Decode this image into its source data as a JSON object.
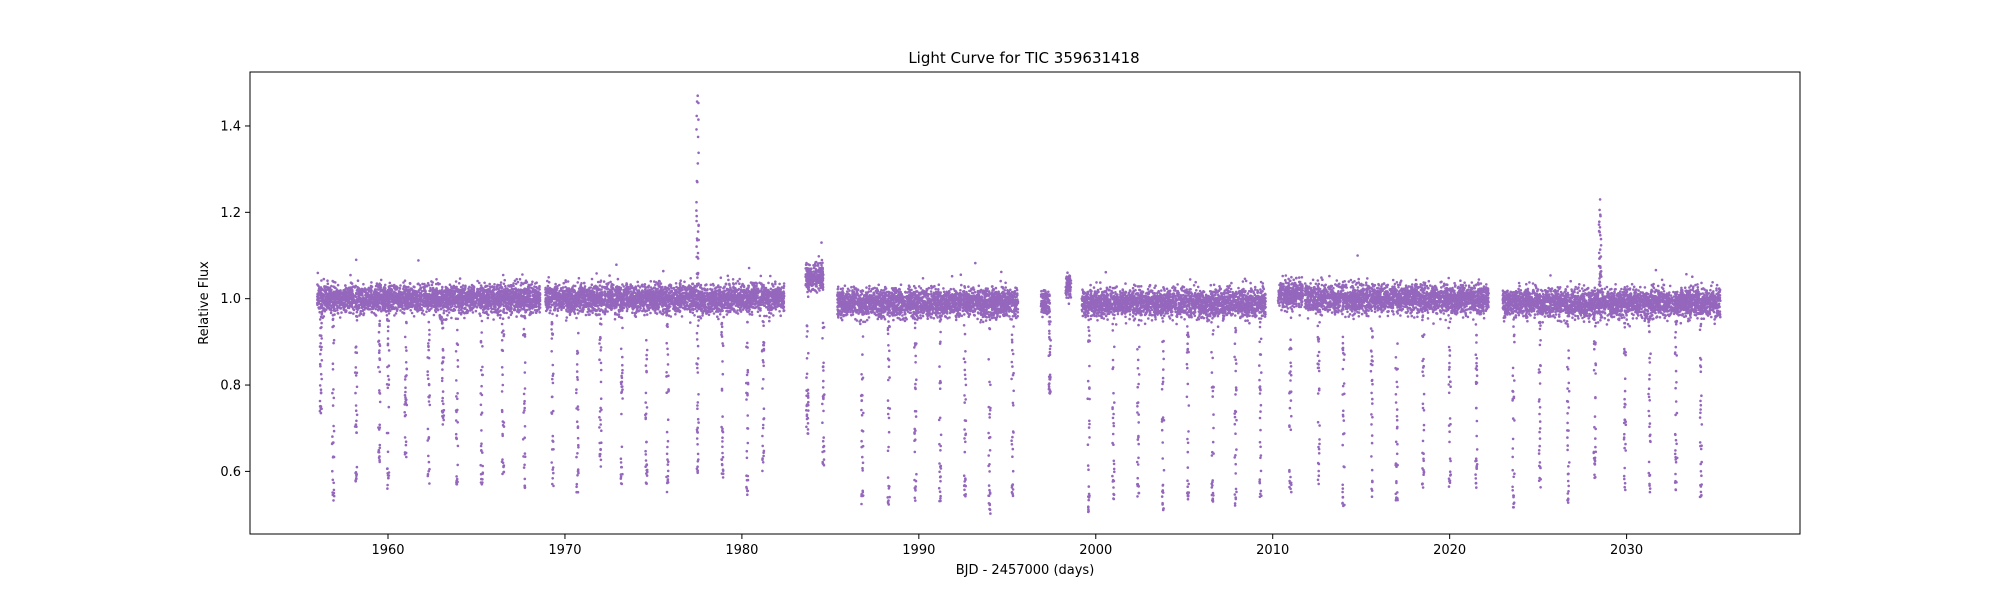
{
  "chart_data": {
    "type": "scatter",
    "title": "Light Curve for TIC 359631418",
    "xlabel": "BJD - 2457000 (days)",
    "ylabel": "Relative Flux",
    "xlim": [
      1952.2,
      2039.8
    ],
    "ylim": [
      0.455,
      1.525
    ],
    "xticks": [
      1960,
      1970,
      1980,
      1990,
      2000,
      2010,
      2020,
      2030
    ],
    "yticks": [
      0.6,
      0.8,
      1.0,
      1.2,
      1.4
    ],
    "xtick_labels": [
      "1960",
      "1970",
      "1980",
      "1990",
      "2000",
      "2010",
      "2020",
      "2030"
    ],
    "ytick_labels": [
      "0.6",
      "0.8",
      "1.0",
      "1.2",
      "1.4"
    ],
    "grid": false,
    "legend": "none",
    "marker_color": "#9467bd",
    "baseline_flux": 1.0,
    "scatter_band": [
      0.94,
      1.05
    ],
    "observing_segments": [
      {
        "x_range": [
          1956.0,
          1968.6
        ],
        "median_flux": 1.0
      },
      {
        "x_range": [
          1968.9,
          1982.4
        ],
        "median_flux": 1.0
      },
      {
        "x_range": [
          1983.6,
          1984.6
        ],
        "median_flux": 1.05
      },
      {
        "x_range": [
          1985.4,
          1995.6
        ],
        "median_flux": 0.99
      },
      {
        "x_range": [
          1996.9,
          1997.4
        ],
        "median_flux": 0.99
      },
      {
        "x_range": [
          1998.3,
          1998.6
        ],
        "median_flux": 1.03
      },
      {
        "x_range": [
          1999.2,
          2009.6
        ],
        "median_flux": 0.99
      },
      {
        "x_range": [
          2010.3,
          2011.7
        ],
        "median_flux": 1.01
      },
      {
        "x_range": [
          2011.8,
          2022.2
        ],
        "median_flux": 1.0
      },
      {
        "x_range": [
          2023.0,
          2035.3
        ],
        "median_flux": 0.99
      }
    ],
    "dip_events": [
      {
        "x": 1956.2,
        "min_flux": 0.72
      },
      {
        "x": 1956.9,
        "min_flux": 0.53
      },
      {
        "x": 1958.2,
        "min_flux": 0.56
      },
      {
        "x": 1959.5,
        "min_flux": 0.62
      },
      {
        "x": 1960.0,
        "min_flux": 0.56
      },
      {
        "x": 1961.0,
        "min_flux": 0.63
      },
      {
        "x": 1962.3,
        "min_flux": 0.57
      },
      {
        "x": 1963.1,
        "min_flux": 0.7
      },
      {
        "x": 1963.9,
        "min_flux": 0.56
      },
      {
        "x": 1965.3,
        "min_flux": 0.56
      },
      {
        "x": 1966.5,
        "min_flux": 0.58
      },
      {
        "x": 1967.7,
        "min_flux": 0.56
      },
      {
        "x": 1969.3,
        "min_flux": 0.56
      },
      {
        "x": 1970.7,
        "min_flux": 0.55
      },
      {
        "x": 1972.0,
        "min_flux": 0.61
      },
      {
        "x": 1973.2,
        "min_flux": 0.56
      },
      {
        "x": 1974.6,
        "min_flux": 0.57
      },
      {
        "x": 1975.8,
        "min_flux": 0.55
      },
      {
        "x": 1977.5,
        "min_flux": 0.58
      },
      {
        "x": 1978.9,
        "min_flux": 0.56
      },
      {
        "x": 1980.3,
        "min_flux": 0.54
      },
      {
        "x": 1981.2,
        "min_flux": 0.59
      },
      {
        "x": 1983.7,
        "min_flux": 0.68
      },
      {
        "x": 1984.6,
        "min_flux": 0.61
      },
      {
        "x": 1986.8,
        "min_flux": 0.51
      },
      {
        "x": 1988.3,
        "min_flux": 0.52
      },
      {
        "x": 1989.8,
        "min_flux": 0.53
      },
      {
        "x": 1991.2,
        "min_flux": 0.53
      },
      {
        "x": 1992.6,
        "min_flux": 0.54
      },
      {
        "x": 1994.0,
        "min_flux": 0.5
      },
      {
        "x": 1995.3,
        "min_flux": 0.53
      },
      {
        "x": 1997.4,
        "min_flux": 0.78
      },
      {
        "x": 1999.6,
        "min_flux": 0.5
      },
      {
        "x": 2001.0,
        "min_flux": 0.53
      },
      {
        "x": 2002.4,
        "min_flux": 0.53
      },
      {
        "x": 2003.8,
        "min_flux": 0.51
      },
      {
        "x": 2005.2,
        "min_flux": 0.52
      },
      {
        "x": 2006.6,
        "min_flux": 0.53
      },
      {
        "x": 2007.9,
        "min_flux": 0.52
      },
      {
        "x": 2009.3,
        "min_flux": 0.54
      },
      {
        "x": 2011.0,
        "min_flux": 0.55
      },
      {
        "x": 2012.6,
        "min_flux": 0.57
      },
      {
        "x": 2014.0,
        "min_flux": 0.52
      },
      {
        "x": 2015.6,
        "min_flux": 0.53
      },
      {
        "x": 2017.0,
        "min_flux": 0.53
      },
      {
        "x": 2018.5,
        "min_flux": 0.56
      },
      {
        "x": 2020.0,
        "min_flux": 0.56
      },
      {
        "x": 2021.5,
        "min_flux": 0.56
      },
      {
        "x": 2023.6,
        "min_flux": 0.51
      },
      {
        "x": 2025.1,
        "min_flux": 0.56
      },
      {
        "x": 2026.7,
        "min_flux": 0.52
      },
      {
        "x": 2028.2,
        "min_flux": 0.58
      },
      {
        "x": 2029.9,
        "min_flux": 0.54
      },
      {
        "x": 2031.3,
        "min_flux": 0.55
      },
      {
        "x": 2032.8,
        "min_flux": 0.55
      },
      {
        "x": 2034.2,
        "min_flux": 0.54
      }
    ],
    "flare_events": [
      {
        "x": 1977.5,
        "peak_flux": 1.47
      },
      {
        "x": 2028.5,
        "peak_flux": 1.23
      }
    ],
    "notable_points": [
      {
        "x": 1958.2,
        "y": 1.09
      },
      {
        "x": 2014.8,
        "y": 1.1
      },
      {
        "x": 1984.5,
        "y": 1.13
      }
    ]
  }
}
